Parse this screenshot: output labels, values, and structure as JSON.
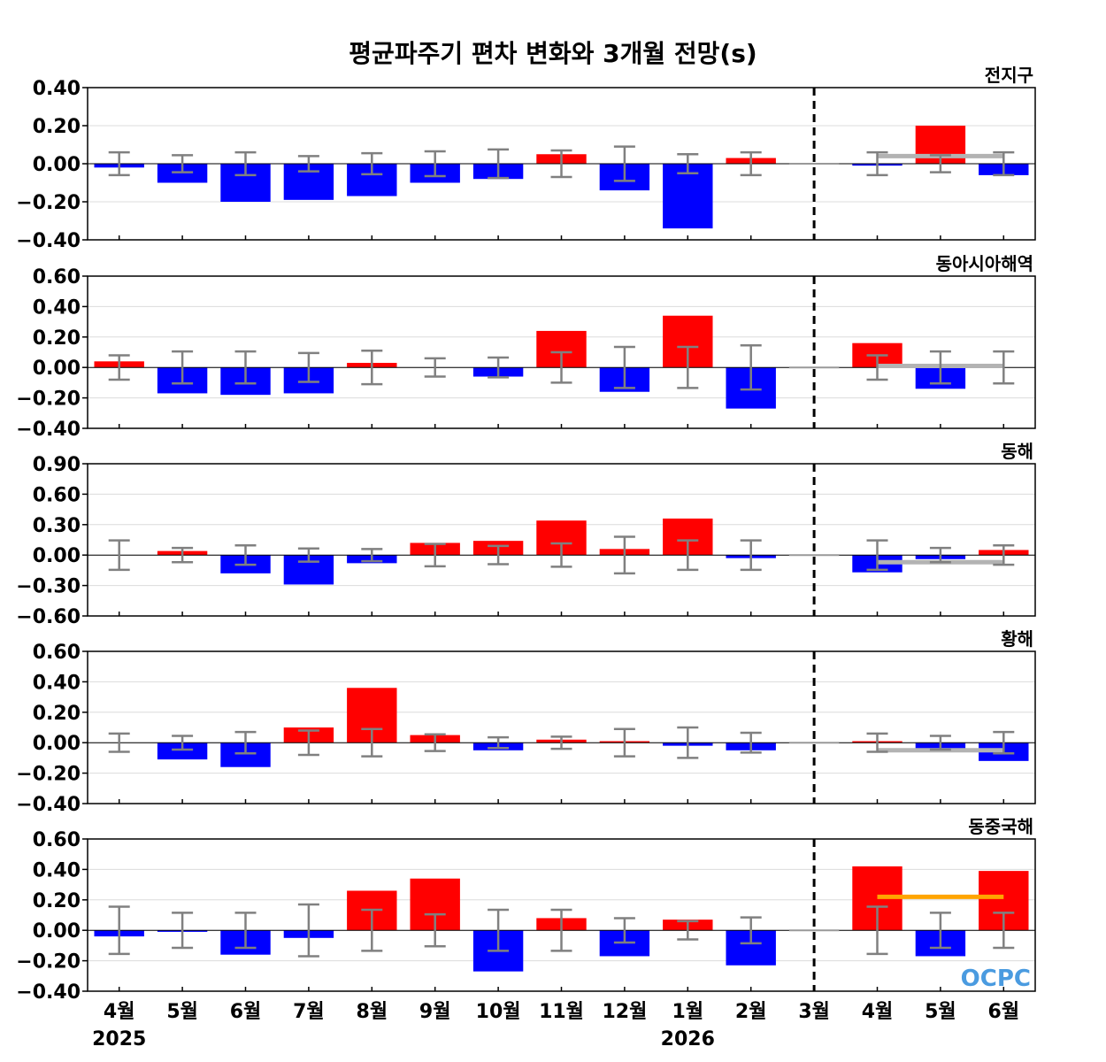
{
  "chart_data": {
    "type": "bar",
    "title": "평균파주기 편차 변화와 3개월 전망(s)",
    "categories": [
      "4월",
      "5월",
      "6월",
      "7월",
      "8월",
      "9월",
      "10월",
      "11월",
      "12월",
      "1월",
      "2월",
      "3월",
      "4월",
      "5월",
      "6월"
    ],
    "year_labels": [
      {
        "category_index": 0,
        "label": "2025"
      },
      {
        "category_index": 9,
        "label": "2026"
      }
    ],
    "forecast_divider_after_index": 11,
    "colors": {
      "positive": "#ff0000",
      "negative": "#0000ff",
      "errorbar": "#808080",
      "outlook_gray": "#b3b3b3",
      "outlook_orange": "#ffa500"
    },
    "logo_text": "OCPC",
    "panels": [
      {
        "name": "전지구",
        "yticks": [
          "0.40",
          "0.20",
          "0.00",
          "−0.20",
          "−0.40"
        ],
        "ylim": [
          -0.4,
          0.4
        ],
        "values": [
          -0.02,
          -0.1,
          -0.2,
          -0.19,
          -0.17,
          -0.1,
          -0.08,
          0.05,
          -0.14,
          -0.34,
          0.03,
          0.0,
          -0.01,
          0.2,
          -0.06
        ],
        "error": [
          0.06,
          0.045,
          0.06,
          0.04,
          0.055,
          0.065,
          0.075,
          0.07,
          0.09,
          0.05,
          0.06,
          0.0,
          0.06,
          0.045,
          0.06
        ],
        "outlook": {
          "value": 0.04,
          "from_index": 12,
          "to_index": 14,
          "color": "gray"
        }
      },
      {
        "name": "동아시아해역",
        "yticks": [
          "0.60",
          "0.40",
          "0.20",
          "0.00",
          "−0.20",
          "−0.40"
        ],
        "ylim": [
          -0.4,
          0.6
        ],
        "values": [
          0.04,
          -0.17,
          -0.18,
          -0.17,
          0.03,
          0.0,
          -0.06,
          0.24,
          -0.16,
          0.34,
          -0.27,
          0.0,
          0.16,
          -0.14,
          0.0
        ],
        "error": [
          0.08,
          0.105,
          0.105,
          0.095,
          0.11,
          0.06,
          0.065,
          0.1,
          0.135,
          0.135,
          0.145,
          0.0,
          0.08,
          0.105,
          0.105
        ],
        "outlook": {
          "value": 0.01,
          "from_index": 12,
          "to_index": 14,
          "color": "gray"
        }
      },
      {
        "name": "동해",
        "yticks": [
          "0.90",
          "0.60",
          "0.30",
          "0.00",
          "−0.30",
          "−0.60"
        ],
        "ylim": [
          -0.6,
          0.9
        ],
        "values": [
          0.0,
          0.04,
          -0.18,
          -0.29,
          -0.08,
          0.12,
          0.14,
          0.34,
          0.06,
          0.36,
          -0.03,
          0.0,
          -0.17,
          -0.04,
          0.05
        ],
        "error": [
          0.145,
          0.07,
          0.095,
          0.065,
          0.06,
          0.11,
          0.09,
          0.115,
          0.18,
          0.145,
          0.145,
          0.0,
          0.145,
          0.07,
          0.095
        ],
        "outlook": {
          "value": -0.07,
          "from_index": 12,
          "to_index": 14,
          "color": "gray"
        }
      },
      {
        "name": "황해",
        "yticks": [
          "0.60",
          "0.40",
          "0.20",
          "0.00",
          "−0.20",
          "−0.40"
        ],
        "ylim": [
          -0.4,
          0.6
        ],
        "values": [
          0.0,
          -0.11,
          -0.16,
          0.1,
          0.36,
          0.05,
          -0.05,
          0.02,
          0.01,
          -0.02,
          -0.05,
          0.0,
          0.01,
          -0.04,
          -0.12
        ],
        "error": [
          0.06,
          0.045,
          0.07,
          0.08,
          0.09,
          0.055,
          0.035,
          0.04,
          0.09,
          0.1,
          0.065,
          0.0,
          0.06,
          0.045,
          0.07
        ],
        "outlook": {
          "value": -0.05,
          "from_index": 12,
          "to_index": 14,
          "color": "gray"
        }
      },
      {
        "name": "동중국해",
        "yticks": [
          "0.60",
          "0.40",
          "0.20",
          "0.00",
          "−0.20",
          "−0.40"
        ],
        "ylim": [
          -0.4,
          0.6
        ],
        "values": [
          -0.04,
          -0.01,
          -0.16,
          -0.05,
          0.26,
          0.34,
          -0.27,
          0.08,
          -0.17,
          0.07,
          -0.23,
          0.0,
          0.42,
          -0.17,
          0.39
        ],
        "error": [
          0.155,
          0.115,
          0.115,
          0.17,
          0.135,
          0.105,
          0.135,
          0.135,
          0.08,
          0.06,
          0.085,
          0.0,
          0.155,
          0.115,
          0.115
        ],
        "outlook": {
          "value": 0.22,
          "from_index": 12,
          "to_index": 14,
          "color": "orange"
        }
      }
    ]
  }
}
